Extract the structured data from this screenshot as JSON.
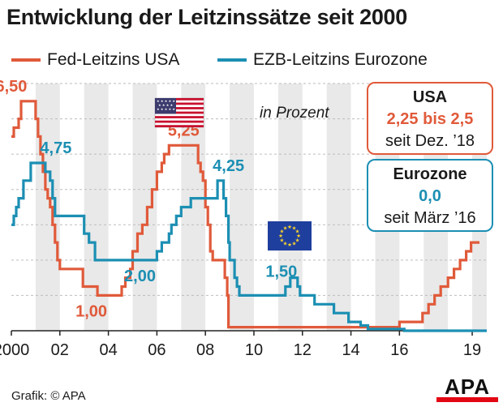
{
  "chart_data": {
    "type": "line",
    "title": "Entwicklung der Leitzinssätze seit 2000",
    "unit_note": "in Prozent",
    "x_ticks": [
      "2000",
      "02",
      "04",
      "06",
      "08",
      "10",
      "12",
      "14",
      "16",
      "19"
    ],
    "x_tick_years": [
      2000,
      2002,
      2004,
      2006,
      2008,
      2010,
      2012,
      2014,
      2016,
      2019
    ],
    "xlim": [
      2000,
      2019.6
    ],
    "ylim": [
      0,
      7
    ],
    "grid": true,
    "colors": {
      "fed": "#e05a3a",
      "ecb": "#1c8fb3",
      "band": "#e9e9e9"
    },
    "series": [
      {
        "name": "Fed-Leitzins USA",
        "key": "fed",
        "points": [
          [
            2000.0,
            5.5
          ],
          [
            2000.1,
            5.75
          ],
          [
            2000.3,
            6.0
          ],
          [
            2000.4,
            6.5
          ],
          [
            2000.9,
            6.5
          ],
          [
            2001.0,
            6.0
          ],
          [
            2001.1,
            5.5
          ],
          [
            2001.2,
            5.0
          ],
          [
            2001.3,
            4.5
          ],
          [
            2001.4,
            4.0
          ],
          [
            2001.5,
            3.75
          ],
          [
            2001.6,
            3.5
          ],
          [
            2001.7,
            3.0
          ],
          [
            2001.8,
            2.5
          ],
          [
            2001.9,
            2.0
          ],
          [
            2002.0,
            1.75
          ],
          [
            2002.9,
            1.75
          ],
          [
            2002.95,
            1.25
          ],
          [
            2003.5,
            1.25
          ],
          [
            2003.55,
            1.0
          ],
          [
            2004.5,
            1.0
          ],
          [
            2004.55,
            1.25
          ],
          [
            2004.7,
            1.5
          ],
          [
            2004.9,
            1.75
          ],
          [
            2005.0,
            2.25
          ],
          [
            2005.2,
            2.75
          ],
          [
            2005.4,
            3.0
          ],
          [
            2005.6,
            3.5
          ],
          [
            2005.8,
            4.0
          ],
          [
            2006.0,
            4.5
          ],
          [
            2006.2,
            4.75
          ],
          [
            2006.3,
            5.0
          ],
          [
            2006.5,
            5.25
          ],
          [
            2007.6,
            5.25
          ],
          [
            2007.7,
            4.75
          ],
          [
            2007.8,
            4.5
          ],
          [
            2007.9,
            4.25
          ],
          [
            2008.0,
            3.5
          ],
          [
            2008.1,
            3.0
          ],
          [
            2008.2,
            2.25
          ],
          [
            2008.3,
            2.0
          ],
          [
            2008.8,
            1.5
          ],
          [
            2008.9,
            1.0
          ],
          [
            2008.95,
            0.1
          ],
          [
            2015.9,
            0.1
          ],
          [
            2016.0,
            0.25
          ],
          [
            2016.95,
            0.5
          ],
          [
            2017.2,
            0.75
          ],
          [
            2017.45,
            1.0
          ],
          [
            2017.7,
            1.25
          ],
          [
            2018.0,
            1.5
          ],
          [
            2018.25,
            1.75
          ],
          [
            2018.5,
            2.0
          ],
          [
            2018.75,
            2.25
          ],
          [
            2018.95,
            2.5
          ],
          [
            2019.3,
            2.5
          ]
        ]
      },
      {
        "name": "EZB-Leitzins Eurozone",
        "key": "ecb",
        "points": [
          [
            2000.0,
            3.0
          ],
          [
            2000.1,
            3.25
          ],
          [
            2000.2,
            3.5
          ],
          [
            2000.3,
            3.75
          ],
          [
            2000.5,
            4.25
          ],
          [
            2000.8,
            4.75
          ],
          [
            2001.3,
            4.75
          ],
          [
            2001.4,
            4.5
          ],
          [
            2001.6,
            4.25
          ],
          [
            2001.7,
            3.75
          ],
          [
            2001.8,
            3.25
          ],
          [
            2002.9,
            3.25
          ],
          [
            2003.0,
            2.75
          ],
          [
            2003.2,
            2.5
          ],
          [
            2003.45,
            2.0
          ],
          [
            2005.9,
            2.0
          ],
          [
            2006.0,
            2.25
          ],
          [
            2006.2,
            2.5
          ],
          [
            2006.5,
            2.75
          ],
          [
            2006.6,
            3.0
          ],
          [
            2006.8,
            3.25
          ],
          [
            2007.0,
            3.5
          ],
          [
            2007.4,
            3.75
          ],
          [
            2008.4,
            3.75
          ],
          [
            2008.5,
            4.25
          ],
          [
            2008.7,
            4.25
          ],
          [
            2008.75,
            3.75
          ],
          [
            2008.85,
            3.25
          ],
          [
            2008.95,
            2.5
          ],
          [
            2009.0,
            2.0
          ],
          [
            2009.2,
            1.5
          ],
          [
            2009.3,
            1.25
          ],
          [
            2009.4,
            1.0
          ],
          [
            2011.2,
            1.0
          ],
          [
            2011.3,
            1.25
          ],
          [
            2011.5,
            1.5
          ],
          [
            2011.8,
            1.25
          ],
          [
            2011.9,
            1.0
          ],
          [
            2012.5,
            0.75
          ],
          [
            2013.3,
            0.5
          ],
          [
            2013.9,
            0.25
          ],
          [
            2014.4,
            0.15
          ],
          [
            2014.7,
            0.05
          ],
          [
            2016.2,
            0.0
          ],
          [
            2019.6,
            0.0
          ]
        ]
      }
    ],
    "annotations": [
      {
        "text": "6,50",
        "series": "fed"
      },
      {
        "text": "4,75",
        "series": "ecb"
      },
      {
        "text": "1,00",
        "series": "fed"
      },
      {
        "text": "2,00",
        "series": "ecb"
      },
      {
        "text": "5,25",
        "series": "fed"
      },
      {
        "text": "4,25",
        "series": "ecb"
      },
      {
        "text": "1,50",
        "series": "ecb"
      }
    ]
  },
  "legend": [
    {
      "label": "Fed-Leitzins USA",
      "color": "#e05a3a"
    },
    {
      "label": "EZB-Leitzins Eurozone",
      "color": "#1c8fb3"
    }
  ],
  "boxes": {
    "usa": {
      "title": "USA",
      "value": "2,25 bis 2,5",
      "date": "seit Dez. ’18"
    },
    "euro": {
      "title": "Eurozone",
      "value": "0,0",
      "date": "seit März ’16"
    }
  },
  "footer": {
    "credit": "Grafik: © APA",
    "logo_text": "APA"
  },
  "flags": {
    "usa": "us-flag-icon",
    "eu": "eu-flag-icon"
  }
}
